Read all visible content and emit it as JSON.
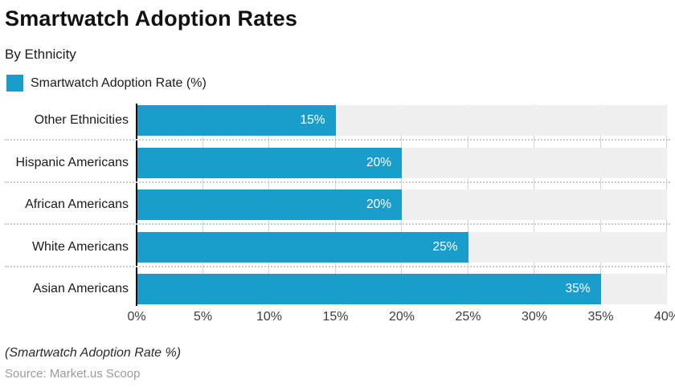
{
  "header": {
    "title": "Smartwatch Adoption Rates",
    "subtitle": "By Ethnicity"
  },
  "legend": {
    "label": "Smartwatch Adoption Rate (%)"
  },
  "chart_data": {
    "type": "bar",
    "orientation": "horizontal",
    "title": "Smartwatch Adoption Rates",
    "subtitle": "By Ethnicity",
    "series_name": "Smartwatch Adoption Rate (%)",
    "categories": [
      "Other Ethnicities",
      "Hispanic Americans",
      "African Americans",
      "White Americans",
      "Asian Americans"
    ],
    "values": [
      15,
      20,
      20,
      25,
      35
    ],
    "value_labels": [
      "15%",
      "20%",
      "20%",
      "25%",
      "35%"
    ],
    "xlim": [
      0,
      40
    ],
    "x_tick_step": 5,
    "x_tick_labels": [
      "0%",
      "5%",
      "10%",
      "15%",
      "20%",
      "25%",
      "30%",
      "35%",
      "40%"
    ],
    "grid": "vertical-gridlines-with-dotted-row-separators",
    "legend_position": "top-left"
  },
  "colors": {
    "bar": "#199ECB",
    "row_background": "#F0F0F0",
    "gridline": "#D4D4D4",
    "axis": "#000000",
    "value_label_text": "#FFFFFF"
  },
  "footer": {
    "note": "(Smartwatch Adoption Rate %)",
    "source": "Source: Market.us Scoop"
  }
}
